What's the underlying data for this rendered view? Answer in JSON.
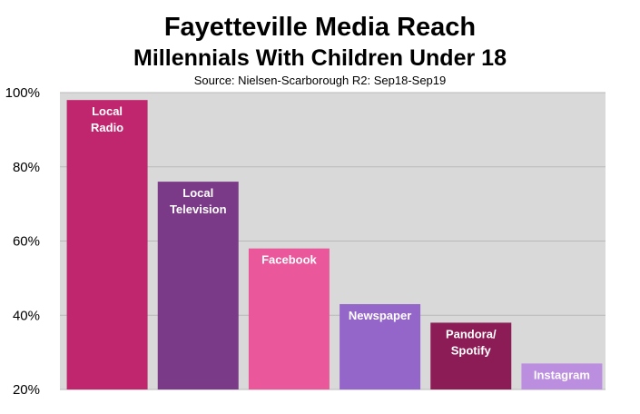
{
  "title": "Fayetteville Media Reach",
  "subtitle": "Millennials With Children Under 18",
  "source": "Source: Nielsen-Scarborough R2: Sep18-Sep19",
  "colors": {
    "plot_bg": "#d9d9d9",
    "grid": "#b9b9b9"
  },
  "chart_data": {
    "type": "bar",
    "title": "Fayetteville Media Reach",
    "subtitle": "Millennials With Children Under 18",
    "xlabel": "",
    "ylabel": "",
    "ylim": [
      20,
      100
    ],
    "yticks": [
      "20%",
      "40%",
      "60%",
      "80%",
      "100%"
    ],
    "ytick_values": [
      20,
      40,
      60,
      80,
      100
    ],
    "grid": true,
    "categories": [
      "Local Radio",
      "Local Television",
      "Facebook",
      "Newspaper",
      "Pandora/ Spotify",
      "Instagram"
    ],
    "label_lines": [
      [
        "Local",
        "Radio"
      ],
      [
        "Local",
        "Television"
      ],
      [
        "Facebook"
      ],
      [
        "Newspaper"
      ],
      [
        "Pandora/",
        "Spotify"
      ],
      [
        "Instagram"
      ]
    ],
    "values": [
      98,
      76,
      58,
      43,
      38,
      27
    ],
    "bar_colors": [
      "#c0266e",
      "#7b3a87",
      "#ea579b",
      "#9466c9",
      "#8c1c55",
      "#bb8ee0"
    ]
  }
}
